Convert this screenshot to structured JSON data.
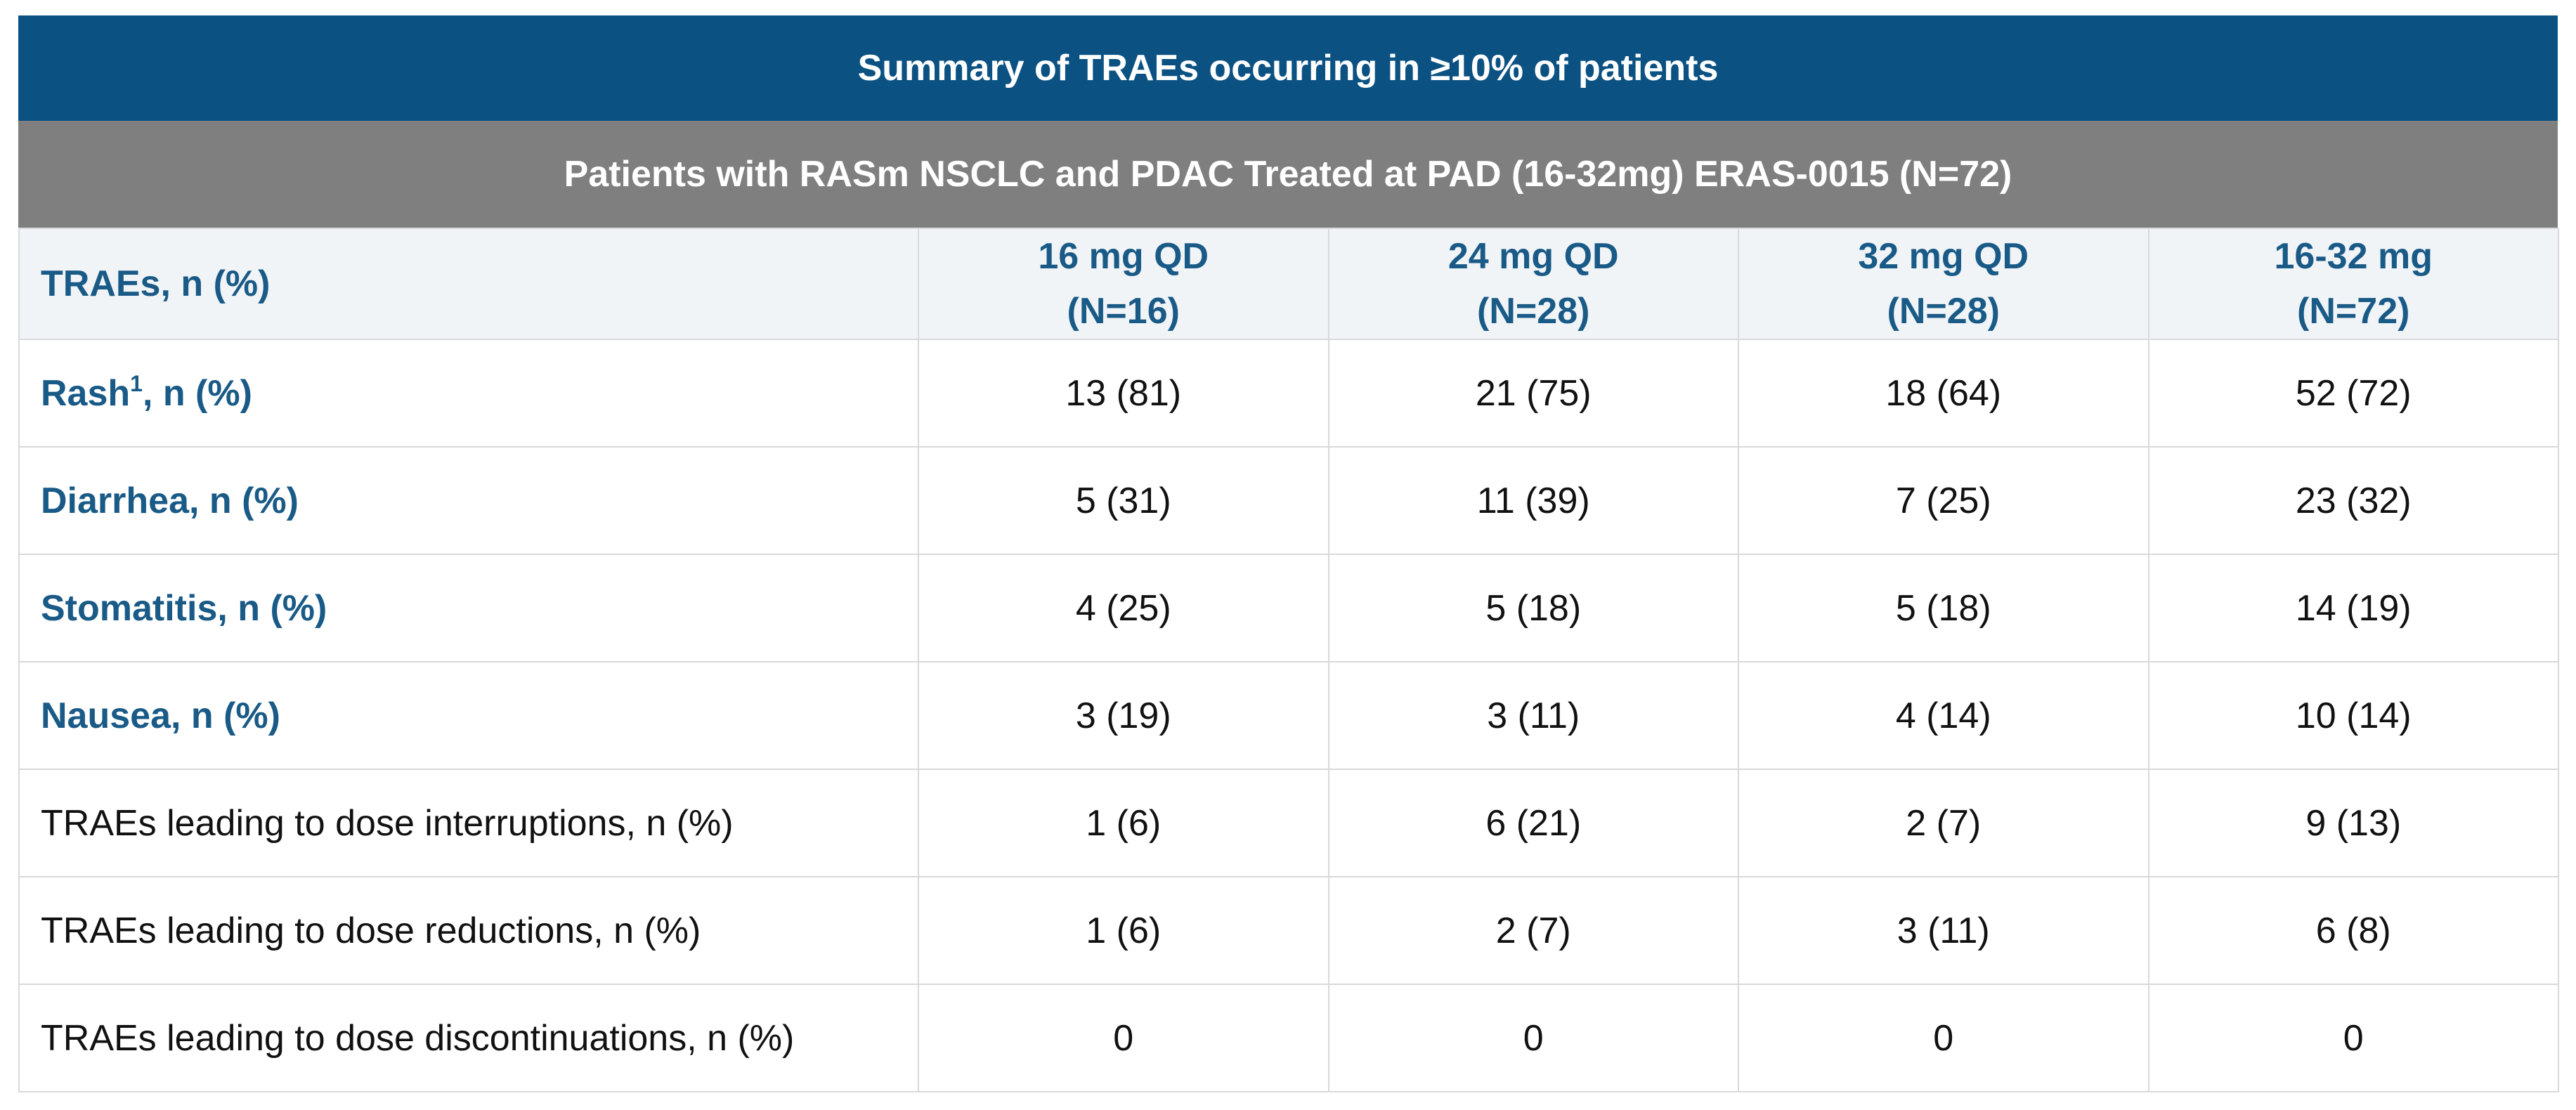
{
  "chart_data": {
    "type": "table",
    "title": "Summary of TRAEs occurring in ≥10% of patients",
    "subtitle": "Patients with RASm NSCLC and PDAC Treated at PAD (16-32mg) ERAS-0015 (N=72)",
    "row_header": "TRAEs, n (%)",
    "columns": [
      {
        "dose": "16 mg QD",
        "n": "(N=16)"
      },
      {
        "dose": "24 mg QD",
        "n": "(N=28)"
      },
      {
        "dose": "32 mg QD",
        "n": "(N=28)"
      },
      {
        "dose": "16-32 mg",
        "n": "(N=72)"
      }
    ],
    "rows": [
      {
        "label": "Rash",
        "sup": "1",
        "label_suffix": ", n (%)",
        "bold": true,
        "values": [
          "13 (81)",
          "21 (75)",
          "18 (64)",
          "52 (72)"
        ]
      },
      {
        "label": "Diarrhea, n (%)",
        "sup": "",
        "label_suffix": "",
        "bold": true,
        "values": [
          "5 (31)",
          "11 (39)",
          "7 (25)",
          "23 (32)"
        ]
      },
      {
        "label": "Stomatitis, n (%)",
        "sup": "",
        "label_suffix": "",
        "bold": true,
        "values": [
          "4 (25)",
          "5 (18)",
          "5 (18)",
          "14 (19)"
        ]
      },
      {
        "label": "Nausea, n (%)",
        "sup": "",
        "label_suffix": "",
        "bold": true,
        "values": [
          "3 (19)",
          "3 (11)",
          "4 (14)",
          "10 (14)"
        ]
      },
      {
        "label": "TRAEs leading to dose interruptions, n (%)",
        "sup": "",
        "label_suffix": "",
        "bold": false,
        "values": [
          "1 (6)",
          "6 (21)",
          "2 (7)",
          "9 (13)"
        ]
      },
      {
        "label": "TRAEs leading to dose reductions, n (%)",
        "sup": "",
        "label_suffix": "",
        "bold": false,
        "values": [
          "1 (6)",
          "2 (7)",
          "3 (11)",
          "6 (8)"
        ]
      },
      {
        "label": "TRAEs leading to dose discontinuations, n (%)",
        "sup": "",
        "label_suffix": "",
        "bold": false,
        "values": [
          "0",
          "0",
          "0",
          "0"
        ]
      }
    ],
    "colors": {
      "title_bg": "#0b5283",
      "subtitle_bg": "#7f7f7f",
      "header_bg": "#f1f4f7",
      "accent_text": "#195a87",
      "border": "#d9d9d9"
    }
  }
}
